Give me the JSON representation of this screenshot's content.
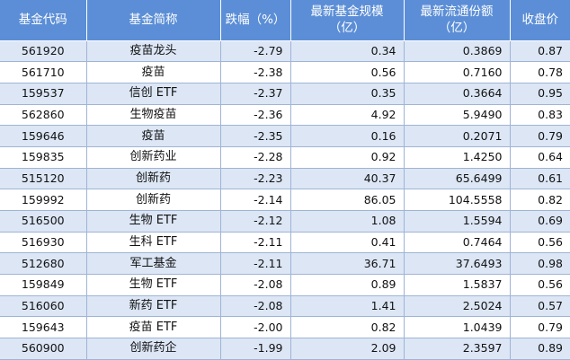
{
  "table": {
    "headers": [
      [
        "基金代码"
      ],
      [
        "基金简称"
      ],
      [
        "跌幅（%）"
      ],
      [
        "最新基金规模",
        "（亿）"
      ],
      [
        "最新流通份额",
        "（亿）"
      ],
      [
        "收盘价"
      ]
    ],
    "rows": [
      [
        "561920",
        "疫苗龙头",
        "-2.79",
        "0.34",
        "0.3869",
        "0.87"
      ],
      [
        "561710",
        "疫苗",
        "-2.38",
        "0.56",
        "0.7160",
        "0.78"
      ],
      [
        "159537",
        "信创 ETF",
        "-2.37",
        "0.35",
        "0.3664",
        "0.95"
      ],
      [
        "562860",
        "生物疫苗",
        "-2.36",
        "4.92",
        "5.9490",
        "0.83"
      ],
      [
        "159646",
        "疫苗",
        "-2.35",
        "0.16",
        "0.2071",
        "0.79"
      ],
      [
        "159835",
        "创新药业",
        "-2.28",
        "0.92",
        "1.4250",
        "0.64"
      ],
      [
        "515120",
        "创新药",
        "-2.23",
        "40.37",
        "65.6499",
        "0.61"
      ],
      [
        "159992",
        "创新药",
        "-2.14",
        "86.05",
        "104.5558",
        "0.82"
      ],
      [
        "516500",
        "生物 ETF",
        "-2.12",
        "1.08",
        "1.5594",
        "0.69"
      ],
      [
        "516930",
        "生科 ETF",
        "-2.11",
        "0.41",
        "0.7464",
        "0.56"
      ],
      [
        "512680",
        "军工基金",
        "-2.11",
        "36.71",
        "37.6493",
        "0.98"
      ],
      [
        "159849",
        "生物 ETF",
        "-2.08",
        "0.89",
        "1.5837",
        "0.56"
      ],
      [
        "516060",
        "新药 ETF",
        "-2.08",
        "1.41",
        "2.5024",
        "0.57"
      ],
      [
        "159643",
        "疫苗 ETF",
        "-2.00",
        "0.82",
        "1.0439",
        "0.79"
      ],
      [
        "560900",
        "创新药企",
        "-1.99",
        "2.09",
        "2.3597",
        "0.89"
      ]
    ]
  },
  "colors": {
    "header_bg": "#5b8ed6",
    "header_text": "#ffffff",
    "stripe_bg": "#dce6f5",
    "plain_bg": "#ffffff",
    "grid": "#9fb4d6"
  }
}
